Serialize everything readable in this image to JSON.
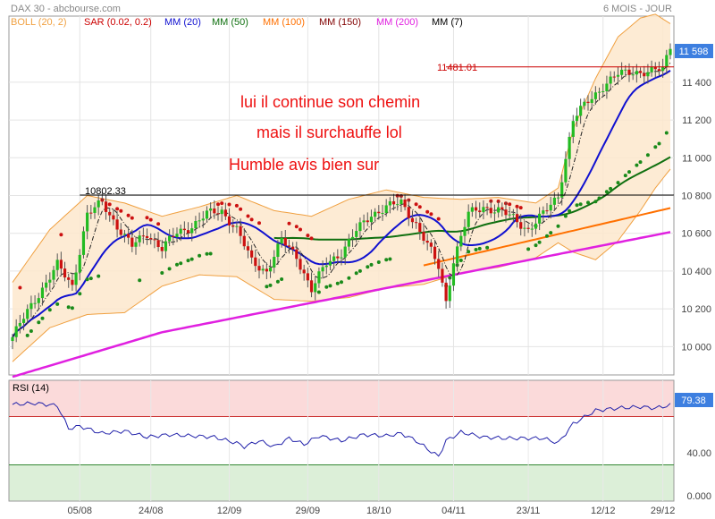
{
  "header": {
    "symbol": "DAX 30 - abcbourse.com",
    "period": "6 MOIS - JOUR",
    "legend": [
      {
        "label": "BOLL (20, 2)",
        "color": "#f0a040"
      },
      {
        "label": "SAR (0.02, 0.2)",
        "color": "#cc0000"
      },
      {
        "label": "MM (20)",
        "color": "#1010d0"
      },
      {
        "label": "MM (50)",
        "color": "#107010"
      },
      {
        "label": "MM (100)",
        "color": "#ff7000"
      },
      {
        "label": "MM (150)",
        "color": "#800000"
      },
      {
        "label": "MM (200)",
        "color": "#e020e0"
      },
      {
        "label": "MM (7)",
        "color": "#000000"
      }
    ]
  },
  "annotations": {
    "line1": "lui il continue son chemin",
    "line2": "mais il surchauffe lol",
    "line3": "Humble avis bien sur",
    "level_a": "10802.33",
    "level_b": "11481.01",
    "last_price": "11 598",
    "rsi_label": "RSI (14)",
    "rsi_last": "79.38"
  },
  "chart_data": [
    {
      "type": "candlestick",
      "title": "DAX 30",
      "x_ticks": [
        "05/08",
        "24/08",
        "12/09",
        "29/09",
        "18/10",
        "04/11",
        "23/11",
        "12/12",
        "29/12"
      ],
      "y_ticks": [
        "10 000",
        "10 200",
        "10 400",
        "10 600",
        "10 800",
        "11 000",
        "11 200",
        "11 400"
      ],
      "ylim": [
        9850,
        11750
      ],
      "levels": [
        10802.33,
        11481.01
      ],
      "last_price": 11598,
      "close_path": [
        [
          0,
          10050
        ],
        [
          6,
          10250
        ],
        [
          12,
          10430
        ],
        [
          16,
          10320
        ],
        [
          20,
          10700
        ],
        [
          24,
          10760
        ],
        [
          28,
          10640
        ],
        [
          32,
          10530
        ],
        [
          36,
          10600
        ],
        [
          40,
          10520
        ],
        [
          44,
          10600
        ],
        [
          48,
          10640
        ],
        [
          52,
          10700
        ],
        [
          56,
          10720
        ],
        [
          60,
          10620
        ],
        [
          64,
          10450
        ],
        [
          68,
          10400
        ],
        [
          72,
          10560
        ],
        [
          76,
          10480
        ],
        [
          80,
          10300
        ],
        [
          84,
          10440
        ],
        [
          88,
          10500
        ],
        [
          92,
          10610
        ],
        [
          96,
          10700
        ],
        [
          100,
          10740
        ],
        [
          104,
          10760
        ],
        [
          108,
          10650
        ],
        [
          112,
          10500
        ],
        [
          114,
          10420
        ],
        [
          116,
          10240
        ],
        [
          118,
          10460
        ],
        [
          122,
          10700
        ],
        [
          126,
          10740
        ],
        [
          130,
          10720
        ],
        [
          134,
          10680
        ],
        [
          138,
          10620
        ],
        [
          142,
          10700
        ],
        [
          146,
          10800
        ],
        [
          150,
          11200
        ],
        [
          154,
          11300
        ],
        [
          158,
          11380
        ],
        [
          162,
          11440
        ],
        [
          166,
          11460
        ],
        [
          170,
          11450
        ],
        [
          174,
          11470
        ],
        [
          176,
          11598
        ]
      ],
      "bollinger_upper": [
        [
          0,
          10340
        ],
        [
          10,
          10620
        ],
        [
          20,
          10800
        ],
        [
          30,
          10760
        ],
        [
          40,
          10690
        ],
        [
          50,
          10740
        ],
        [
          60,
          10800
        ],
        [
          70,
          10720
        ],
        [
          80,
          10690
        ],
        [
          90,
          10780
        ],
        [
          100,
          10830
        ],
        [
          110,
          10790
        ],
        [
          120,
          10780
        ],
        [
          130,
          10790
        ],
        [
          140,
          10760
        ],
        [
          146,
          10840
        ],
        [
          150,
          11150
        ],
        [
          156,
          11420
        ],
        [
          162,
          11640
        ],
        [
          168,
          11740
        ],
        [
          172,
          11760
        ],
        [
          176,
          11710
        ]
      ],
      "bollinger_lower": [
        [
          0,
          9920
        ],
        [
          10,
          10100
        ],
        [
          20,
          10170
        ],
        [
          30,
          10180
        ],
        [
          40,
          10320
        ],
        [
          50,
          10380
        ],
        [
          60,
          10370
        ],
        [
          70,
          10250
        ],
        [
          80,
          10240
        ],
        [
          90,
          10260
        ],
        [
          100,
          10310
        ],
        [
          110,
          10330
        ],
        [
          120,
          10390
        ],
        [
          130,
          10420
        ],
        [
          140,
          10470
        ],
        [
          146,
          10550
        ],
        [
          150,
          10500
        ],
        [
          156,
          10460
        ],
        [
          162,
          10560
        ],
        [
          168,
          10720
        ],
        [
          172,
          10840
        ],
        [
          176,
          10940
        ]
      ],
      "rsi": {
        "ylim": [
          0,
          100
        ],
        "y_ticks": [
          "0.000",
          "40.00"
        ],
        "overbought": 70,
        "oversold": 30,
        "last": 79.38,
        "path": [
          [
            0,
            80
          ],
          [
            6,
            81
          ],
          [
            12,
            79
          ],
          [
            15,
            60
          ],
          [
            18,
            62
          ],
          [
            24,
            56
          ],
          [
            30,
            58
          ],
          [
            36,
            53
          ],
          [
            42,
            55
          ],
          [
            48,
            54
          ],
          [
            54,
            53
          ],
          [
            60,
            48
          ],
          [
            62,
            45
          ],
          [
            66,
            50
          ],
          [
            70,
            45
          ],
          [
            74,
            52
          ],
          [
            78,
            47
          ],
          [
            82,
            54
          ],
          [
            88,
            50
          ],
          [
            94,
            55
          ],
          [
            100,
            54
          ],
          [
            104,
            56
          ],
          [
            108,
            50
          ],
          [
            112,
            41
          ],
          [
            114,
            37
          ],
          [
            116,
            50
          ],
          [
            120,
            57
          ],
          [
            126,
            53
          ],
          [
            132,
            52
          ],
          [
            138,
            52
          ],
          [
            142,
            52
          ],
          [
            146,
            48
          ],
          [
            150,
            64
          ],
          [
            156,
            75
          ],
          [
            162,
            77
          ],
          [
            168,
            78
          ],
          [
            172,
            77
          ],
          [
            176,
            79.38
          ]
        ]
      }
    }
  ]
}
